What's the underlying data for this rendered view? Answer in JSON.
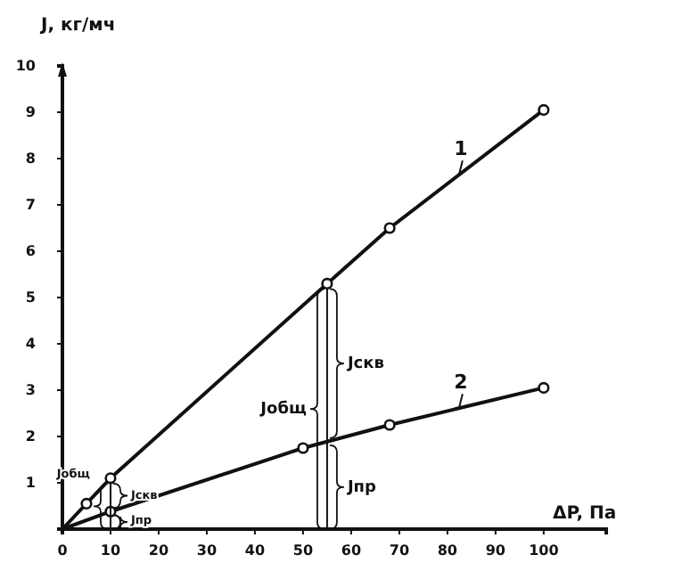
{
  "chart_data": {
    "type": "line",
    "xlabel": "ΔP, Па",
    "ylabel": "J, кг/мч",
    "series": [
      {
        "name": "1",
        "color": "#111111",
        "x": [
          0,
          5,
          10,
          55,
          68,
          100
        ],
        "values": [
          0,
          0.55,
          1.1,
          5.3,
          6.5,
          9.05
        ]
      },
      {
        "name": "2",
        "color": "#111111",
        "x": [
          0,
          10,
          50,
          68,
          100
        ],
        "values": [
          0,
          0.38,
          1.75,
          2.25,
          3.05
        ]
      }
    ],
    "xlim": [
      0,
      113
    ],
    "ylim": [
      0,
      10
    ],
    "xticks": [
      0,
      10,
      20,
      30,
      40,
      50,
      60,
      70,
      80,
      90,
      100
    ],
    "yticks": [
      1,
      2,
      3,
      4,
      5,
      6,
      7,
      8,
      9,
      10
    ],
    "marker": "circle",
    "line_style": "solid",
    "grid": false,
    "legend": false,
    "annotations": [
      "Jобщ",
      "Jскв",
      "Jпр",
      "Jобщ",
      "Jскв",
      "Jпр"
    ]
  }
}
